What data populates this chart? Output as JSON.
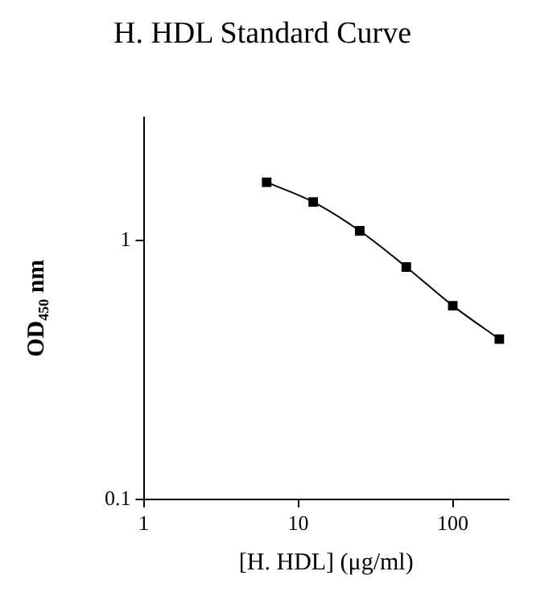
{
  "chart_data": {
    "type": "line",
    "title": "H. HDL Standard Curve",
    "xlabel": "[H. HDL] (μg/ml)",
    "ylabel": "OD₄₅₀ nm",
    "x": [
      6.25,
      12.5,
      25,
      50,
      100,
      200
    ],
    "series": [
      {
        "color": "#000000",
        "values": [
          1.68,
          1.41,
          1.09,
          0.79,
          0.56,
          0.416
        ]
      }
    ],
    "log": "xy",
    "xlim": [
      1,
      230
    ],
    "ylim": [
      0.1,
      3
    ],
    "xticks": [
      1,
      10,
      100
    ],
    "yticks": [
      0.1,
      1
    ],
    "grid": false,
    "legend": false,
    "marker": "square",
    "line_style": "solid"
  }
}
